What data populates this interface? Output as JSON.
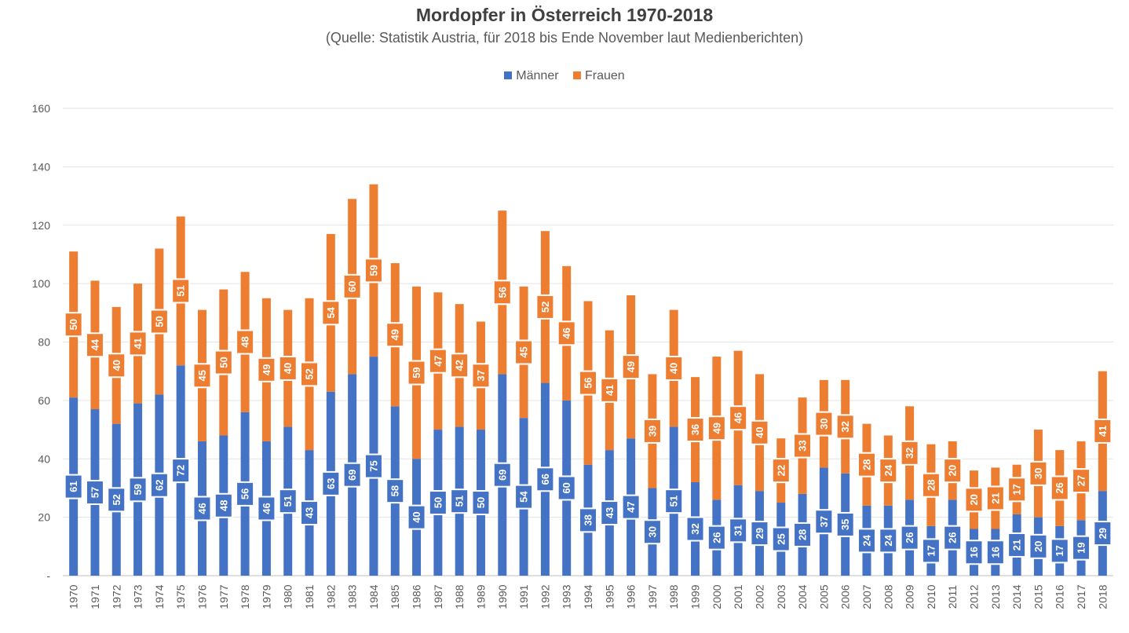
{
  "chart_data": {
    "type": "bar",
    "stacked": true,
    "title": "Mordopfer in Österreich 1970-2018",
    "subtitle": "(Quelle: Statistik Austria, für 2018 bis Ende November laut Medienberichten)",
    "xlabel": "",
    "ylabel": "",
    "ylim": [
      0,
      160
    ],
    "yticks": [
      0,
      20,
      40,
      60,
      80,
      100,
      120,
      140,
      160
    ],
    "ytick_labels": [
      "-",
      "20",
      "40",
      "60",
      "80",
      "100",
      "120",
      "140",
      "160"
    ],
    "grid": true,
    "legend_position": "top-center",
    "categories": [
      "1970",
      "1971",
      "1972",
      "1973",
      "1974",
      "1975",
      "1976",
      "1977",
      "1978",
      "1979",
      "1980",
      "1981",
      "1982",
      "1983",
      "1984",
      "1985",
      "1986",
      "1987",
      "1988",
      "1989",
      "1990",
      "1991",
      "1992",
      "1993",
      "1994",
      "1995",
      "1996",
      "1997",
      "1998",
      "1999",
      "2000",
      "2001",
      "2002",
      "2003",
      "2004",
      "2005",
      "2006",
      "2007",
      "2008",
      "2009",
      "2010",
      "2011",
      "2012",
      "2013",
      "2014",
      "2015",
      "2016",
      "2017",
      "2018"
    ],
    "series": [
      {
        "name": "Männer",
        "color": "#4472c4",
        "values": [
          61,
          57,
          52,
          59,
          62,
          72,
          46,
          48,
          56,
          46,
          51,
          43,
          63,
          69,
          75,
          58,
          40,
          50,
          51,
          50,
          69,
          54,
          66,
          60,
          38,
          43,
          47,
          30,
          51,
          32,
          26,
          31,
          29,
          25,
          28,
          37,
          35,
          24,
          24,
          26,
          17,
          26,
          16,
          16,
          21,
          20,
          17,
          19,
          29
        ]
      },
      {
        "name": "Frauen",
        "color": "#ed7d31",
        "values": [
          50,
          44,
          40,
          41,
          50,
          51,
          45,
          50,
          48,
          49,
          40,
          52,
          54,
          60,
          59,
          49,
          59,
          47,
          42,
          37,
          56,
          45,
          52,
          46,
          56,
          41,
          49,
          39,
          40,
          36,
          49,
          46,
          40,
          22,
          33,
          30,
          32,
          28,
          24,
          32,
          28,
          20,
          20,
          21,
          17,
          30,
          26,
          27,
          41
        ]
      }
    ]
  }
}
